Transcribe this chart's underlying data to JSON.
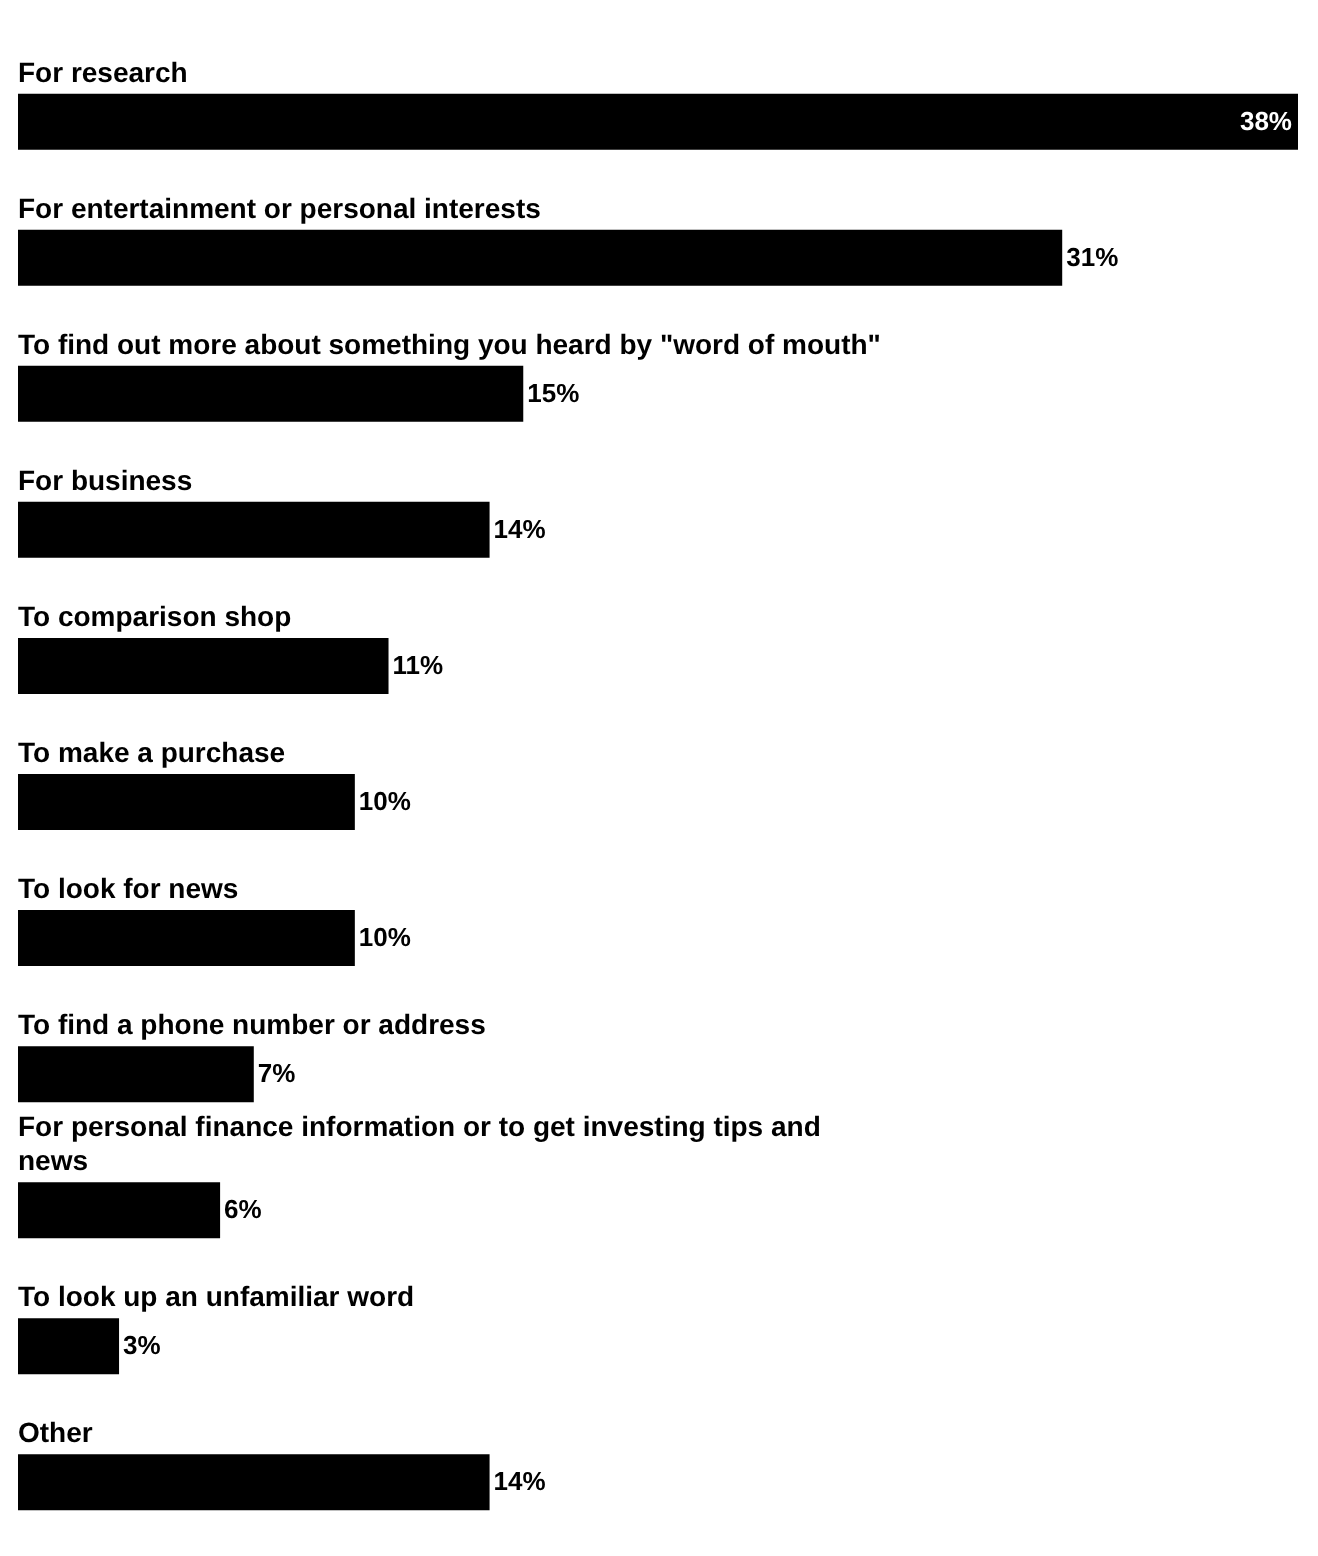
{
  "chart_data": {
    "type": "bar",
    "orientation": "horizontal",
    "categories": [
      "For research",
      "For entertainment or personal interests",
      "To find out more about something you heard by \"word of mouth\"",
      "For business",
      "To comparison shop",
      "To make a purchase",
      "To look for news",
      "To find a phone number or address",
      "For personal finance information or to get investing tips and news",
      "To look up an unfamiliar word",
      "Other"
    ],
    "values": [
      38,
      31,
      15,
      14,
      11,
      10,
      10,
      7,
      6,
      3,
      14
    ],
    "value_labels": [
      "38%",
      "31%",
      "15%",
      "14%",
      "11%",
      "10%",
      "10%",
      "7%",
      "6%",
      "3%",
      "14%"
    ],
    "color": "#000000"
  }
}
